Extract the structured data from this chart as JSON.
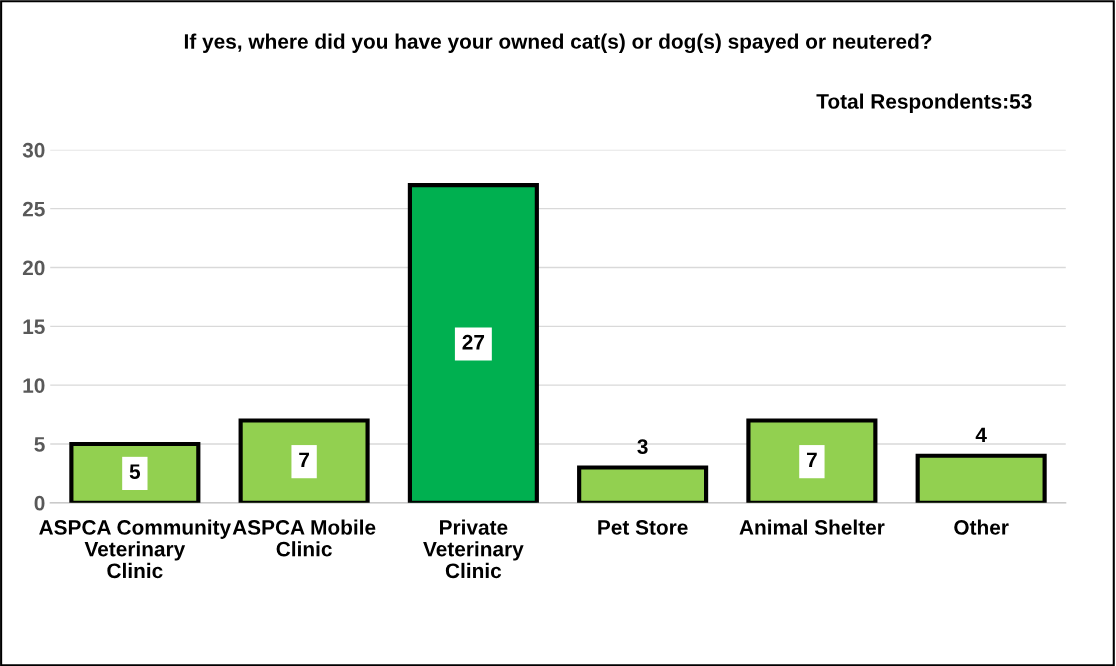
{
  "chart_data": {
    "type": "bar",
    "title": "If yes, where did you have your owned cat(s) or dog(s) spayed or neutered?",
    "categories": [
      "ASPCA Community Veterinary Clinic",
      "ASPCA Mobile Clinic",
      "Private Veterinary Clinic",
      "Pet Store",
      "Animal Shelter",
      "Other"
    ],
    "values": [
      5,
      7,
      27,
      3,
      7,
      4
    ],
    "colors": [
      "#92d050",
      "#92d050",
      "#00b050",
      "#92d050",
      "#92d050",
      "#92d050"
    ],
    "ylim": [
      0,
      30
    ],
    "yticks": [
      0,
      5,
      10,
      15,
      20,
      25,
      30
    ],
    "grid": "y",
    "data_labels": true,
    "annotations": [
      "Total Respondents:53"
    ]
  }
}
